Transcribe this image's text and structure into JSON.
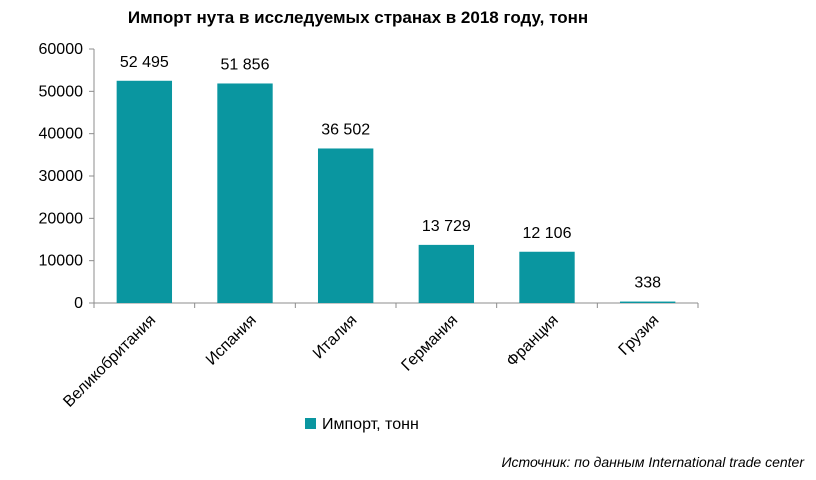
{
  "chart_data": {
    "type": "bar",
    "title": "Импорт нута в исследуемых странах в 2018 году, тонн",
    "categories": [
      "Великобритания",
      "Испания",
      "Италия",
      "Германия",
      "Франция",
      "Грузия"
    ],
    "series": [
      {
        "name": "Импорт, тонн",
        "values": [
          52495,
          51856,
          36502,
          13729,
          12106,
          338
        ],
        "data_labels": [
          "52 495",
          "51 856",
          "36 502",
          "13 729",
          "12 106",
          "338"
        ],
        "color": "#0A96A0"
      }
    ],
    "y_ticks": [
      0,
      10000,
      20000,
      30000,
      40000,
      50000,
      60000
    ],
    "y_tick_labels": [
      "0",
      "10000",
      "20000",
      "30000",
      "40000",
      "50000",
      "60000"
    ],
    "ylim": [
      0,
      60000
    ],
    "grid": false,
    "legend_position": "bottom"
  },
  "source_note": "Источник: по данным International trade center"
}
